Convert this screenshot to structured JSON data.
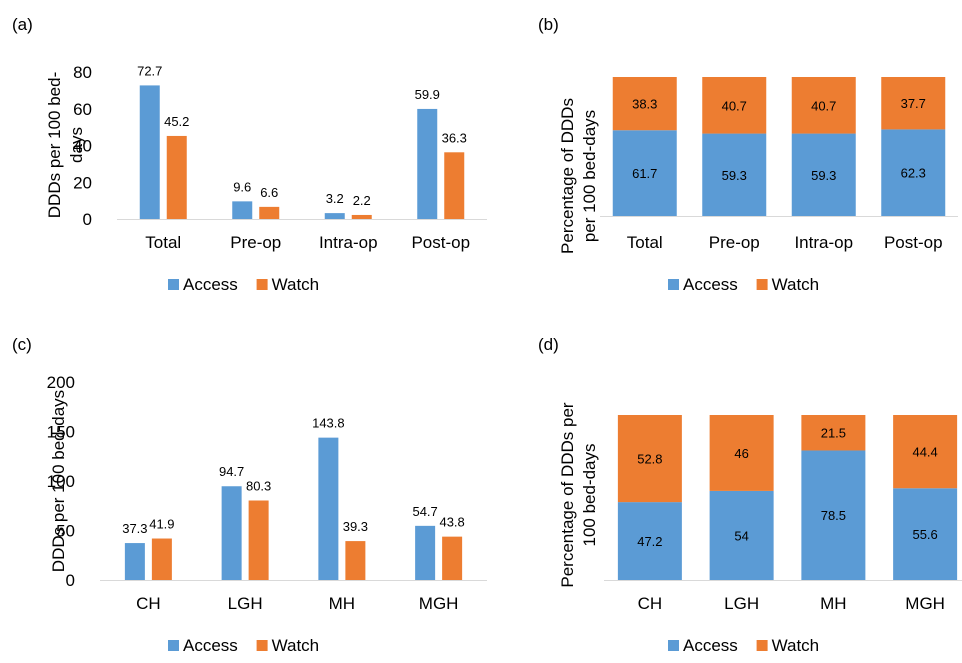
{
  "colors": {
    "access": "#5B9BD5",
    "watch": "#ED7D31",
    "axis": "#D9D9D9",
    "text": "#000000"
  },
  "chart_data": [
    {
      "panel_label": "(a)",
      "type": "bar",
      "categories": [
        "Total",
        "Pre-op",
        "Intra-op",
        "Post-op"
      ],
      "series": [
        {
          "name": "Access",
          "values": [
            72.7,
            9.6,
            3.2,
            59.9
          ]
        },
        {
          "name": "Watch",
          "values": [
            45.2,
            6.6,
            2.2,
            36.3
          ]
        }
      ],
      "ylabel_lines": [
        "DDDs per 100 bed-",
        "days"
      ],
      "yticks": [
        0,
        20,
        40,
        60,
        80
      ],
      "ylim": [
        0,
        80
      ],
      "grid": false,
      "legend": "bottom"
    },
    {
      "panel_label": "(b)",
      "type": "bar",
      "stacked": true,
      "categories": [
        "Total",
        "Pre-op",
        "Intra-op",
        "Post-op"
      ],
      "series": [
        {
          "name": "Access",
          "values": [
            61.7,
            59.3,
            59.3,
            62.3
          ]
        },
        {
          "name": "Watch",
          "values": [
            38.3,
            40.7,
            40.7,
            37.7
          ]
        }
      ],
      "ylabel_lines": [
        "Percentage of DDDs",
        "per 100 bed-days"
      ],
      "ylim": [
        0,
        100
      ],
      "grid": false,
      "legend": "bottom"
    },
    {
      "panel_label": "(c)",
      "type": "bar",
      "categories": [
        "CH",
        "LGH",
        "MH",
        "MGH"
      ],
      "series": [
        {
          "name": "Access",
          "values": [
            37.3,
            94.7,
            143.8,
            54.7
          ]
        },
        {
          "name": "Watch",
          "values": [
            41.9,
            80.3,
            39.3,
            43.8
          ]
        }
      ],
      "ylabel_lines": [
        "DDDs per 100 bed-days"
      ],
      "yticks": [
        0,
        50,
        100,
        150,
        200
      ],
      "ylim": [
        0,
        200
      ],
      "grid": false,
      "legend": "bottom"
    },
    {
      "panel_label": "(d)",
      "type": "bar",
      "stacked": true,
      "categories": [
        "CH",
        "LGH",
        "MH",
        "MGH"
      ],
      "series": [
        {
          "name": "Access",
          "values": [
            47.2,
            54,
            78.5,
            55.6
          ]
        },
        {
          "name": "Watch",
          "values": [
            52.8,
            46,
            21.5,
            44.4
          ]
        }
      ],
      "ylabel_lines": [
        "Percentage of DDDs per",
        "100 bed-days"
      ],
      "ylim": [
        0,
        100
      ],
      "grid": false,
      "legend": "bottom"
    }
  ]
}
